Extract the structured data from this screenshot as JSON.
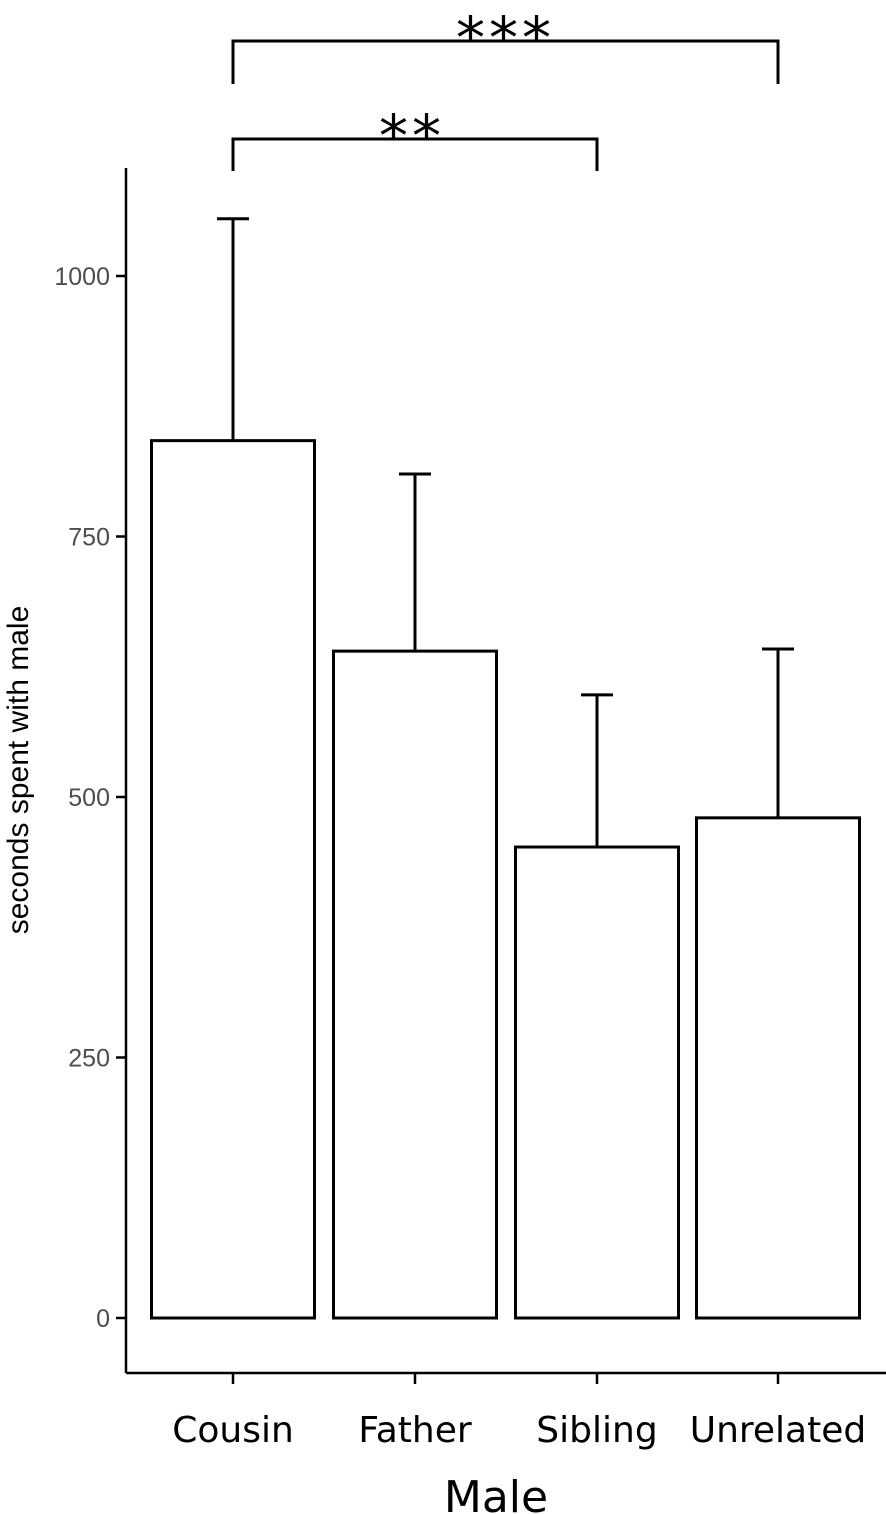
{
  "chart_data": {
    "type": "bar",
    "xlabel": "Male",
    "ylabel": "seconds spent with male",
    "categories": [
      "Cousin",
      "Father",
      "Sibling",
      "Unrelated"
    ],
    "values": [
      842,
      640,
      452,
      480
    ],
    "error_upper": [
      1055,
      810,
      598,
      642
    ],
    "yticks": [
      0,
      250,
      500,
      750,
      1000
    ],
    "ylim": [
      -50,
      1105
    ],
    "grid": false,
    "legend": "none",
    "bar_fill": "#ffffff",
    "bar_stroke": "#000000",
    "significance": [
      {
        "from": "Cousin",
        "to": "Sibling",
        "label": "**"
      },
      {
        "from": "Cousin",
        "to": "Unrelated",
        "label": "***"
      }
    ]
  }
}
